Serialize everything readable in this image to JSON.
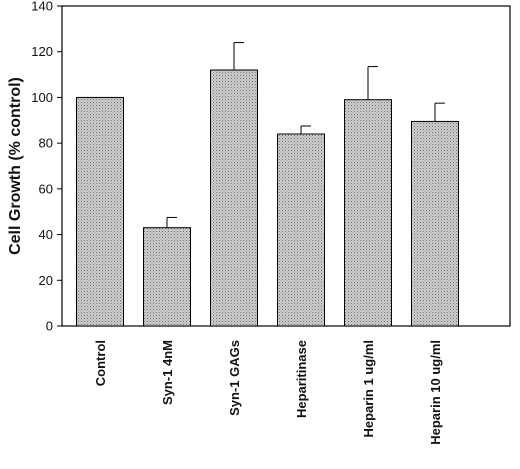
{
  "chart_data": {
    "type": "bar",
    "title": "",
    "xlabel": "",
    "ylabel": "Cell Growth (% control)",
    "categories": [
      "Control",
      "Syn-1 4nM",
      "Syn-1 GAGs",
      "Heparitinase",
      "Heparin 1 ug/ml",
      "Heparin 10 ug/ml"
    ],
    "values": [
      100,
      43,
      112,
      84,
      99,
      89.5
    ],
    "errors": [
      0,
      4.5,
      12,
      3.5,
      14.5,
      8
    ],
    "ylim": [
      0,
      140
    ],
    "yticks": [
      "0",
      "20",
      "40",
      "60",
      "80",
      "100",
      "120",
      "140"
    ],
    "grid": false,
    "bar_fill": "#c8c8c8",
    "bar_pattern": "stippled"
  }
}
